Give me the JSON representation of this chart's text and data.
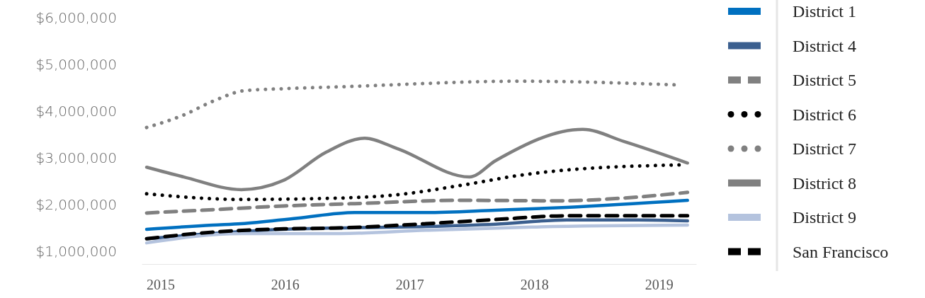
{
  "chart_data": {
    "type": "line",
    "xlim": [
      2014.85,
      2019.3
    ],
    "xticks": [
      2015,
      2016,
      2017,
      2018,
      2019
    ],
    "ylim": [
      1000000,
      6000000
    ],
    "yticks": [
      {
        "value": 1000000,
        "label": "$1,000,000"
      },
      {
        "value": 2000000,
        "label": "$2,000,000"
      },
      {
        "value": 3000000,
        "label": "$3,000,000"
      },
      {
        "value": 4000000,
        "label": "$4,000,000"
      },
      {
        "value": 5000000,
        "label": "$5,000,000"
      },
      {
        "value": 6000000,
        "label": "$6,000,000"
      }
    ],
    "grid": false,
    "legend": "right",
    "marker": "none",
    "series": [
      {
        "name": "District 1",
        "color": "#0070c0",
        "line_style": "solid",
        "x": [
          2014.89,
          2015.42,
          2015.65,
          2016.1,
          2016.56,
          2017.13,
          2017.69,
          2018.26,
          2019.23
        ],
        "values": [
          1470000,
          1560000,
          1590000,
          1710000,
          1830000,
          1830000,
          1880000,
          1940000,
          2090000
        ]
      },
      {
        "name": "District 4",
        "color": "#3b5f8f",
        "line_style": "solid",
        "x": [
          2014.89,
          2015.99,
          2016.44,
          2017.13,
          2017.69,
          2018.26,
          2018.83,
          2019.23
        ],
        "values": [
          1270000,
          1470000,
          1500000,
          1530000,
          1580000,
          1670000,
          1670000,
          1650000
        ]
      },
      {
        "name": "District 5",
        "color": "#808080",
        "line_style": "dashed",
        "x": [
          2014.89,
          2015.42,
          2015.99,
          2016.56,
          2017.41,
          2018.2,
          2018.72,
          2019.23
        ],
        "values": [
          1820000,
          1890000,
          1970000,
          2020000,
          2090000,
          2080000,
          2140000,
          2260000
        ]
      },
      {
        "name": "District 6",
        "color": "#000000",
        "line_style": "dotted",
        "x": [
          2014.89,
          2015.65,
          2016.44,
          2016.9,
          2017.41,
          2017.92,
          2018.26,
          2019.2
        ],
        "values": [
          2230000,
          2110000,
          2140000,
          2210000,
          2410000,
          2640000,
          2740000,
          2850000
        ]
      },
      {
        "name": "District 7",
        "color": "#808080",
        "line_style": "dotted",
        "x": [
          2014.89,
          2015.19,
          2015.42,
          2015.68,
          2015.99,
          2016.44,
          2017.88,
          2019.16
        ],
        "values": [
          3650000,
          3920000,
          4210000,
          4440000,
          4480000,
          4520000,
          4640000,
          4560000
        ]
      },
      {
        "name": "District 8",
        "color": "#808080",
        "line_style": "solid",
        "x": [
          2014.89,
          2015.19,
          2015.65,
          2015.99,
          2016.33,
          2016.64,
          2016.9,
          2017.48,
          2017.69,
          2018.39,
          2018.72,
          2019.23
        ],
        "values": [
          2800000,
          2590000,
          2320000,
          2520000,
          3120000,
          3420000,
          3200000,
          2590000,
          2940000,
          3610000,
          3350000,
          2890000
        ]
      },
      {
        "name": "District 9",
        "color": "#b4c3de",
        "line_style": "solid",
        "x": [
          2014.89,
          2015.65,
          2016.44,
          2017.13,
          2017.98,
          2019.23
        ],
        "values": [
          1180000,
          1380000,
          1380000,
          1450000,
          1520000,
          1560000
        ]
      },
      {
        "name": "San Francisco",
        "color": "#000000",
        "line_style": "dashed",
        "x": [
          2014.89,
          2015.42,
          2015.99,
          2016.44,
          2017.13,
          2017.69,
          2018.26,
          2018.83,
          2019.23
        ],
        "values": [
          1270000,
          1410000,
          1480000,
          1500000,
          1590000,
          1680000,
          1760000,
          1760000,
          1760000
        ]
      }
    ]
  }
}
